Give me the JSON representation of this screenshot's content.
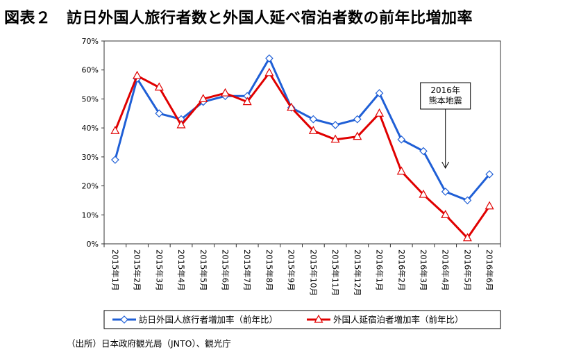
{
  "title": "図表２　訪日外国人旅行者数と外国人延べ宿泊者数の前年比増加率",
  "source": "（出所）日本政府観光局（JNTO）、観光庁",
  "chart_data": {
    "type": "line",
    "categories": [
      "2015年1月",
      "2015年2月",
      "2015年3月",
      "2015年4月",
      "2015年5月",
      "2015年6月",
      "2015年7月",
      "2015年8月",
      "2015年9月",
      "2015年10月",
      "2015年11月",
      "2015年12月",
      "2016年1月",
      "2016年2月",
      "2016年3月",
      "2016年4月",
      "2016年5月",
      "2016年6月"
    ],
    "ylim": [
      0,
      70
    ],
    "yticks": [
      "0%",
      "10%",
      "20%",
      "30%",
      "40%",
      "50%",
      "60%",
      "70%"
    ],
    "yticks_values": [
      0,
      10,
      20,
      30,
      40,
      50,
      60,
      70
    ],
    "grid": false,
    "legend_position": "bottom",
    "series": [
      {
        "name": "訪日外国人旅行者増加率（前年比）",
        "color": "#1f5fd6",
        "marker": "diamond",
        "values": [
          29,
          57,
          45,
          43,
          49,
          51,
          51,
          64,
          47,
          43,
          41,
          43,
          52,
          36,
          32,
          18,
          15,
          24
        ]
      },
      {
        "name": "外国人延宿泊者増加率（前年比）",
        "color": "#e00000",
        "marker": "triangle",
        "values": [
          39,
          58,
          54,
          41,
          50,
          52,
          49,
          59,
          47,
          39,
          36,
          37,
          45,
          25,
          17,
          10,
          2,
          13
        ]
      }
    ],
    "annotation": {
      "lines": [
        "2016年",
        "熊本地震"
      ],
      "category_index": 15
    }
  }
}
